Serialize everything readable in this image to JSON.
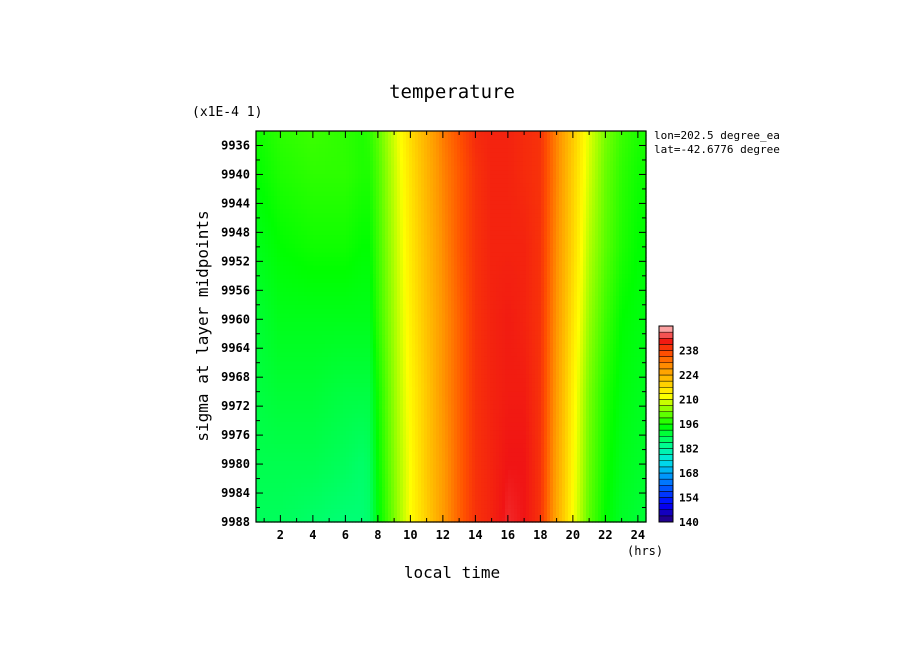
{
  "chart_data": {
    "type": "heatmap",
    "title": "temperature",
    "xlabel": "local time",
    "x_units": "(hrs)",
    "ylabel": "sigma at layer midpoints",
    "y_scale_label": "(x1E-4 1)",
    "annotations": [
      "lon=202.5 degree_ea",
      "lat=-42.6776 degree"
    ],
    "xlim": [
      0.5,
      24.5
    ],
    "ylim": [
      9988,
      9934
    ],
    "x_ticks": [
      "2",
      "4",
      "6",
      "8",
      "10",
      "12",
      "14",
      "16",
      "18",
      "20",
      "22",
      "24"
    ],
    "y_ticks": [
      "9936",
      "9940",
      "9944",
      "9948",
      "9952",
      "9956",
      "9960",
      "9964",
      "9968",
      "9972",
      "9976",
      "9980",
      "9984",
      "9988"
    ],
    "colorbar": {
      "min": 140,
      "max": 252,
      "step": 3.5,
      "tick_labels": [
        "140",
        "154",
        "168",
        "182",
        "196",
        "210",
        "224",
        "238"
      ]
    },
    "x": [
      0.5,
      2,
      4,
      6,
      7,
      7.5,
      8,
      9,
      10,
      11,
      12,
      13,
      14,
      15,
      16,
      17,
      18,
      19,
      20,
      21,
      22,
      23,
      24,
      24.5
    ],
    "y": [
      9934,
      9940,
      9950,
      9960,
      9970,
      9980,
      9988
    ],
    "values": [
      [
        196,
        198,
        199,
        198,
        197,
        198,
        201,
        209,
        217,
        224,
        231,
        236,
        241,
        242,
        242,
        241,
        240,
        230,
        220,
        210,
        203,
        199,
        197,
        197
      ],
      [
        195,
        197,
        198,
        198,
        197,
        197,
        200,
        208,
        216,
        223,
        230,
        235,
        240,
        242,
        242,
        241,
        240,
        230,
        219,
        209,
        202,
        198,
        196,
        196
      ],
      [
        193,
        195,
        196,
        196,
        195,
        195,
        199,
        207,
        215,
        222,
        229,
        235,
        240,
        242,
        242,
        242,
        240,
        229,
        218,
        207,
        201,
        197,
        195,
        195
      ],
      [
        191,
        193,
        193,
        193,
        193,
        193,
        198,
        206,
        214,
        221,
        228,
        234,
        240,
        242,
        243,
        242,
        240,
        228,
        216,
        205,
        199,
        195,
        194,
        194
      ],
      [
        190,
        191,
        191,
        190,
        190,
        190,
        196,
        205,
        213,
        220,
        228,
        234,
        240,
        242,
        243,
        243,
        240,
        227,
        214,
        203,
        197,
        194,
        193,
        193
      ],
      [
        189,
        189,
        189,
        188,
        187,
        188,
        195,
        204,
        212,
        220,
        227,
        234,
        240,
        242,
        244,
        244,
        240,
        226,
        213,
        202,
        196,
        193,
        192,
        192
      ],
      [
        188,
        188,
        187,
        186,
        186,
        187,
        194,
        203,
        212,
        219,
        227,
        234,
        240,
        242,
        245,
        244,
        240,
        225,
        212,
        201,
        195,
        192,
        191,
        191
      ]
    ]
  }
}
